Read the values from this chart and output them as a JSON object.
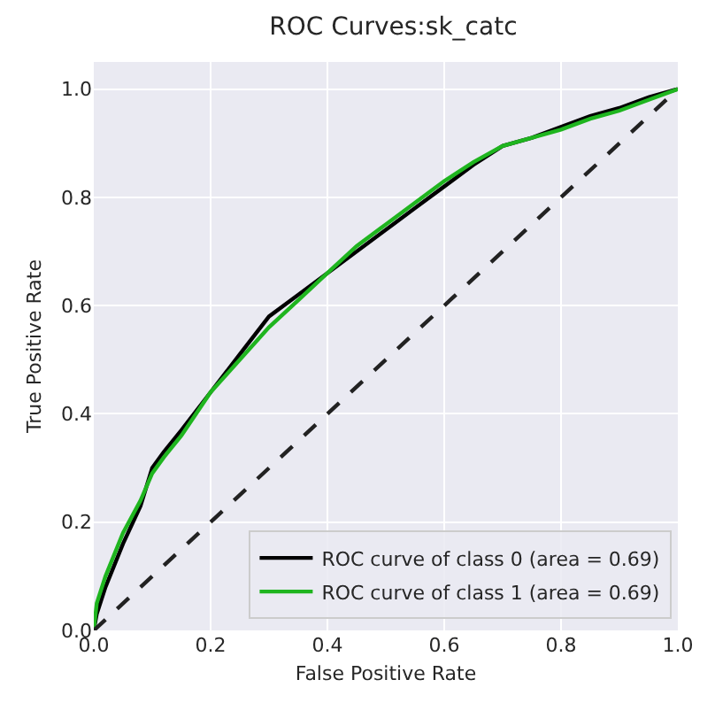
{
  "chart_data": {
    "type": "line",
    "title": "ROC Curves:sk_catc",
    "xlabel": "False Positive Rate",
    "ylabel": "True Positive Rate",
    "xlim": [
      0,
      1
    ],
    "ylim": [
      0,
      1.05
    ],
    "xticks": [
      {
        "value": 0,
        "label": "0.0"
      },
      0.2,
      0.4,
      0.6,
      0.8,
      {
        "value": 1,
        "label": "1.0"
      }
    ],
    "yticks": [
      {
        "value": 0,
        "label": "0.0"
      },
      0.2,
      0.4,
      0.6,
      0.8,
      {
        "value": 1,
        "label": "1.0"
      }
    ],
    "grid": true,
    "legend": "bottom right",
    "line_style": "solid",
    "series": [
      {
        "name": "ROC curve of class 0 (area = 0.69)",
        "color": "#000000",
        "x": [
          0,
          0.005,
          0.02,
          0.05,
          0.08,
          0.1,
          0.12,
          0.15,
          0.2,
          0.25,
          0.3,
          0.35,
          0.4,
          0.45,
          0.5,
          0.55,
          0.6,
          0.65,
          0.7,
          0.75,
          0.8,
          0.85,
          0.9,
          0.95,
          1
        ],
        "values": [
          0,
          0.03,
          0.08,
          0.16,
          0.23,
          0.3,
          0.33,
          0.37,
          0.44,
          0.51,
          0.58,
          0.62,
          0.66,
          0.7,
          0.74,
          0.78,
          0.82,
          0.86,
          0.895,
          0.91,
          0.93,
          0.95,
          0.965,
          0.985,
          1
        ]
      },
      {
        "name": "ROC curve of class 1 (area = 0.69)",
        "color": "#1fb51f",
        "x": [
          0,
          0.005,
          0.02,
          0.05,
          0.08,
          0.1,
          0.12,
          0.15,
          0.2,
          0.25,
          0.3,
          0.35,
          0.4,
          0.45,
          0.5,
          0.55,
          0.6,
          0.65,
          0.7,
          0.75,
          0.8,
          0.85,
          0.9,
          0.95,
          1
        ],
        "values": [
          0,
          0.05,
          0.1,
          0.18,
          0.24,
          0.29,
          0.32,
          0.36,
          0.44,
          0.5,
          0.56,
          0.61,
          0.66,
          0.71,
          0.75,
          0.79,
          0.83,
          0.865,
          0.895,
          0.91,
          0.925,
          0.945,
          0.96,
          0.98,
          1
        ]
      },
      {
        "color": "#222222",
        "line_style": "dashed",
        "x": [
          0,
          1
        ],
        "values": [
          0,
          1
        ]
      }
    ]
  }
}
